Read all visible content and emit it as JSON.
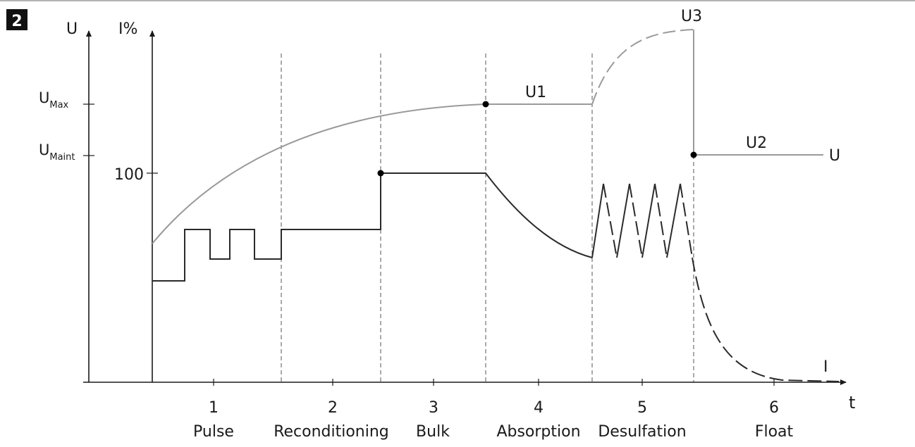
{
  "figure": {
    "number": "2",
    "axes": {
      "voltage_axis": "U",
      "current_axis": "I%",
      "time_axis": "t",
      "u_max": "U",
      "u_max_sub": "Max",
      "u_maint": "U",
      "u_maint_sub": "Maint",
      "current_100": "100"
    },
    "curve_labels": {
      "u1": "U1",
      "u2": "U2",
      "u3": "U3",
      "u_end": "U",
      "i_end": "I"
    },
    "phases": [
      {
        "number": "1",
        "name": "Pulse"
      },
      {
        "number": "2",
        "name": "Reconditioning"
      },
      {
        "number": "3",
        "name": "Bulk"
      },
      {
        "number": "4",
        "name": "Absorption"
      },
      {
        "number": "5",
        "name": "Desulfation"
      },
      {
        "number": "6",
        "name": "Float"
      }
    ]
  }
}
